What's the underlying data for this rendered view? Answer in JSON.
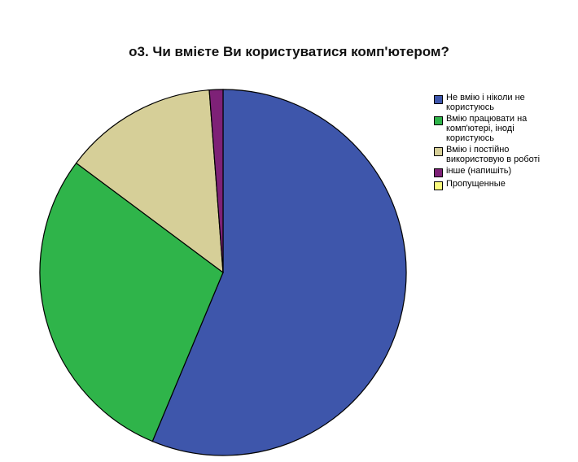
{
  "chart_data": {
    "type": "pie",
    "title": "о3. Чи вмієте Ви користуватися комп'ютером?",
    "categories": [
      "Не вмію і ніколи не\nкористуюсь",
      "Вмію працювати на\nкомп'ютері, іноді\nкористуюсь",
      "Вмію і постійно\nвикористовую в роботі",
      "інше (напишіть)",
      "Пропущенные"
    ],
    "values": [
      56.3,
      28.9,
      13.6,
      1.2,
      0.0
    ],
    "colors": [
      "#3e56ab",
      "#2fb44a",
      "#d6cf98",
      "#7e2177",
      "#fbfb7e"
    ],
    "legend_position": "right"
  }
}
